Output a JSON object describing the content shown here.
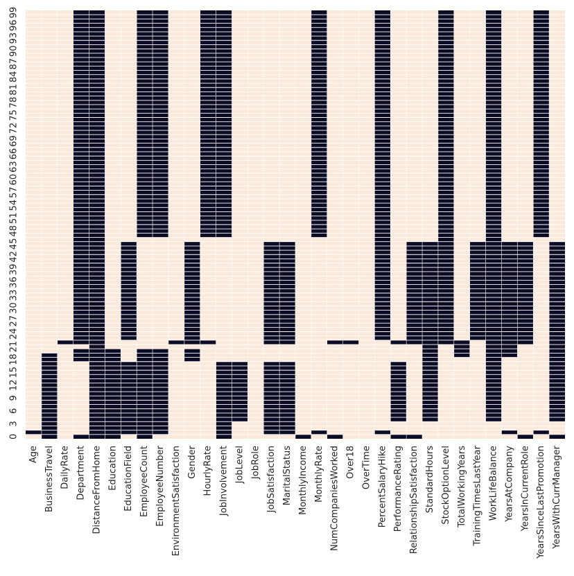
{
  "chart_data": {
    "type": "heatmap",
    "title": "",
    "xlabel": "",
    "ylabel": "",
    "colors": {
      "missing": "#0c0c24",
      "present": "#fbeadb",
      "separator": "#ffffff"
    },
    "columns": [
      "Age",
      "BusinessTravel",
      "DailyRate",
      "Department",
      "DistanceFromHome",
      "Education",
      "EducationField",
      "EmployeeCount",
      "EmployeeNumber",
      "EnvironmentSatisfaction",
      "Gender",
      "HourlyRate",
      "JobInvolvement",
      "JobLevel",
      "JobRole",
      "JobSatisfaction",
      "MaritalStatus",
      "MonthlyIncome",
      "MonthlyRate",
      "NumCompaniesWorked",
      "Over18",
      "OverTime",
      "PercentSalaryHike",
      "PerformanceRating",
      "RelationshipSatisfaction",
      "StandardHours",
      "StockOptionLevel",
      "TotalWorkingYears",
      "TrainingTimesLastYear",
      "WorkLifeBalance",
      "YearsAtCompany",
      "YearsInCurrentRole",
      "YearsSinceLastPromotion",
      "YearsWithCurrManager"
    ],
    "row_count": 100,
    "row_order": "row 0 at bottom, row 99 at top",
    "y_tick_labels": [
      "0",
      "3",
      "6",
      "9",
      "12",
      "15",
      "18",
      "21",
      "24",
      "27",
      "30",
      "33",
      "36",
      "39",
      "42",
      "45",
      "48",
      "51",
      "54",
      "57",
      "60",
      "63",
      "66",
      "69",
      "72",
      "75",
      "78",
      "81",
      "84",
      "87",
      "90",
      "93",
      "96",
      "99"
    ],
    "missing_ranges": {
      "Age": [
        [
          1,
          1
        ]
      ],
      "BusinessTravel": [
        [
          0,
          19
        ]
      ],
      "DailyRate": [
        [
          22,
          22
        ]
      ],
      "Department": [
        [
          0,
          0
        ],
        [
          18,
          20
        ],
        [
          22,
          99
        ]
      ],
      "DistanceFromHome": [
        [
          0,
          99
        ]
      ],
      "Education": [
        [
          0,
          20
        ]
      ],
      "EducationField": [
        [
          1,
          17
        ],
        [
          23,
          45
        ]
      ],
      "EmployeeCount": [
        [
          0,
          20
        ],
        [
          47,
          99
        ]
      ],
      "EmployeeNumber": [
        [
          1,
          20
        ],
        [
          47,
          99
        ]
      ],
      "EnvironmentSatisfaction": [
        [
          22,
          22
        ]
      ],
      "Gender": [
        [
          18,
          20
        ],
        [
          22,
          45
        ]
      ],
      "HourlyRate": [
        [
          22,
          22
        ],
        [
          47,
          99
        ]
      ],
      "JobInvolvement": [
        [
          0,
          17
        ],
        [
          47,
          99
        ]
      ],
      "JobLevel": [
        [
          4,
          17
        ]
      ],
      "JobRole": [],
      "JobSatisfaction": [
        [
          1,
          17
        ],
        [
          22,
          45
        ]
      ],
      "MaritalStatus": [
        [
          1,
          17
        ],
        [
          22,
          45
        ]
      ],
      "MonthlyIncome": [
        [
          0,
          0
        ]
      ],
      "MonthlyRate": [
        [
          1,
          1
        ],
        [
          47,
          99
        ]
      ],
      "NumCompaniesWorked": [
        [
          0,
          0
        ],
        [
          22,
          22
        ]
      ],
      "Over18": [
        [
          22,
          22
        ]
      ],
      "OverTime": [],
      "PercentSalaryHike": [
        [
          1,
          1
        ],
        [
          23,
          99
        ]
      ],
      "PerformanceRating": [
        [
          0,
          0
        ],
        [
          4,
          17
        ],
        [
          22,
          22
        ]
      ],
      "RelationshipSatisfaction": [
        [
          0,
          0
        ],
        [
          22,
          45
        ]
      ],
      "StandardHours": [
        [
          4,
          45
        ]
      ],
      "StockOptionLevel": [
        [
          22,
          99
        ]
      ],
      "TotalWorkingYears": [
        [
          19,
          22
        ]
      ],
      "TrainingTimesLastYear": [
        [
          23,
          45
        ]
      ],
      "WorkLifeBalance": [
        [
          4,
          99
        ]
      ],
      "YearsAtCompany": [
        [
          1,
          1
        ],
        [
          19,
          45
        ]
      ],
      "YearsInCurrentRole": [
        [
          0,
          0
        ],
        [
          22,
          45
        ]
      ],
      "YearsSinceLastPromotion": [
        [
          1,
          1
        ],
        [
          47,
          99
        ]
      ],
      "YearsWithCurrManager": [
        [
          0,
          0
        ],
        [
          4,
          45
        ]
      ]
    }
  }
}
